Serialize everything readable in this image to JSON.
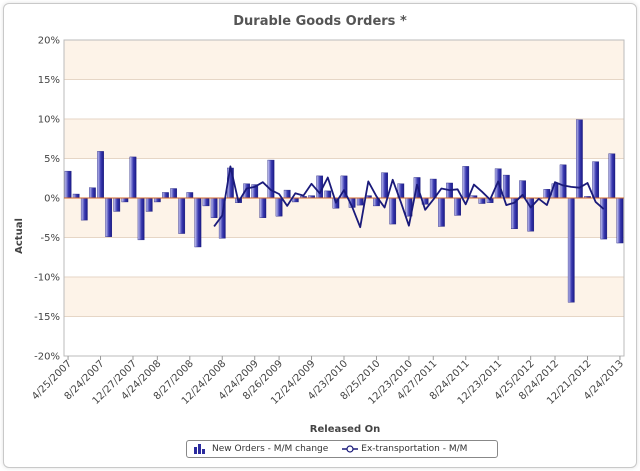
{
  "chart_data": {
    "type": "bar",
    "title": "Durable Goods Orders *",
    "xlabel": "Released On",
    "ylabel": "Actual",
    "ylim": [
      -20,
      20
    ],
    "ytick_labels": [
      "20%",
      "15%",
      "10%",
      "5%",
      "0%",
      "-5%",
      "-10%",
      "-15%",
      "-20%"
    ],
    "x_tick_labels": [
      "4/25/2007",
      "8/24/2007",
      "12/27/2007",
      "4/24/2008",
      "8/27/2008",
      "12/24/2008",
      "4/24/2009",
      "8/26/2009",
      "12/24/2009",
      "4/23/2010",
      "8/25/2010",
      "12/23/2010",
      "4/27/2011",
      "8/24/2011",
      "12/23/2011",
      "4/25/2012",
      "8/24/2012",
      "12/21/2012",
      "4/24/2013"
    ],
    "grid": true,
    "legend_position": "bottom",
    "colors": {
      "bar": "#2b2b9e",
      "line": "#1a1a7a",
      "zero_line": "#d46a2a",
      "band": "#fdf3e8"
    },
    "series": [
      {
        "name": "New Orders - M/M change",
        "type": "bar",
        "values": [
          3.4,
          0.5,
          -2.8,
          1.3,
          5.9,
          -4.9,
          -1.7,
          -0.5,
          5.2,
          -5.3,
          -1.7,
          -0.5,
          0.7,
          1.2,
          -4.5,
          0.7,
          -6.2,
          -1.0,
          -2.5,
          -5.1,
          3.8,
          -0.6,
          1.8,
          1.7,
          -2.5,
          4.8,
          -2.3,
          1.0,
          -0.5,
          0.2,
          0.3,
          2.8,
          0.9,
          -1.3,
          2.8,
          -1.2,
          -0.9,
          0.3,
          -1.0,
          3.2,
          -3.3,
          1.8,
          -2.3,
          2.6,
          -0.8,
          2.4,
          -3.6,
          1.9,
          -2.2,
          4.0,
          0.3,
          -0.7,
          -0.6,
          3.7,
          2.9,
          -3.9,
          2.2,
          -4.2,
          0.0,
          1.1,
          1.8,
          4.2,
          -13.2,
          9.9,
          0.2,
          4.6,
          -5.2,
          5.6,
          -5.7
        ]
      },
      {
        "name": "Ex-transportation - M/M",
        "type": "line",
        "start_index": 18,
        "values": [
          -3.6,
          -2.2,
          4.0,
          -0.5,
          1.2,
          1.4,
          2.0,
          1.0,
          0.5,
          -1.0,
          0.6,
          0.3,
          1.8,
          0.6,
          2.6,
          -0.6,
          1.0,
          -1.1,
          -3.7,
          2.1,
          0.2,
          -1.2,
          2.3,
          -0.5,
          -3.5,
          1.7,
          -1.5,
          -0.2,
          1.2,
          1.0,
          1.1,
          -0.8,
          1.7,
          0.8,
          -0.2,
          2.1,
          -0.9,
          -0.6,
          0.4,
          -1.2,
          -0.1,
          -0.9,
          2.0,
          1.6,
          1.4,
          1.3,
          1.9,
          -0.5,
          -1.4
        ]
      }
    ]
  }
}
